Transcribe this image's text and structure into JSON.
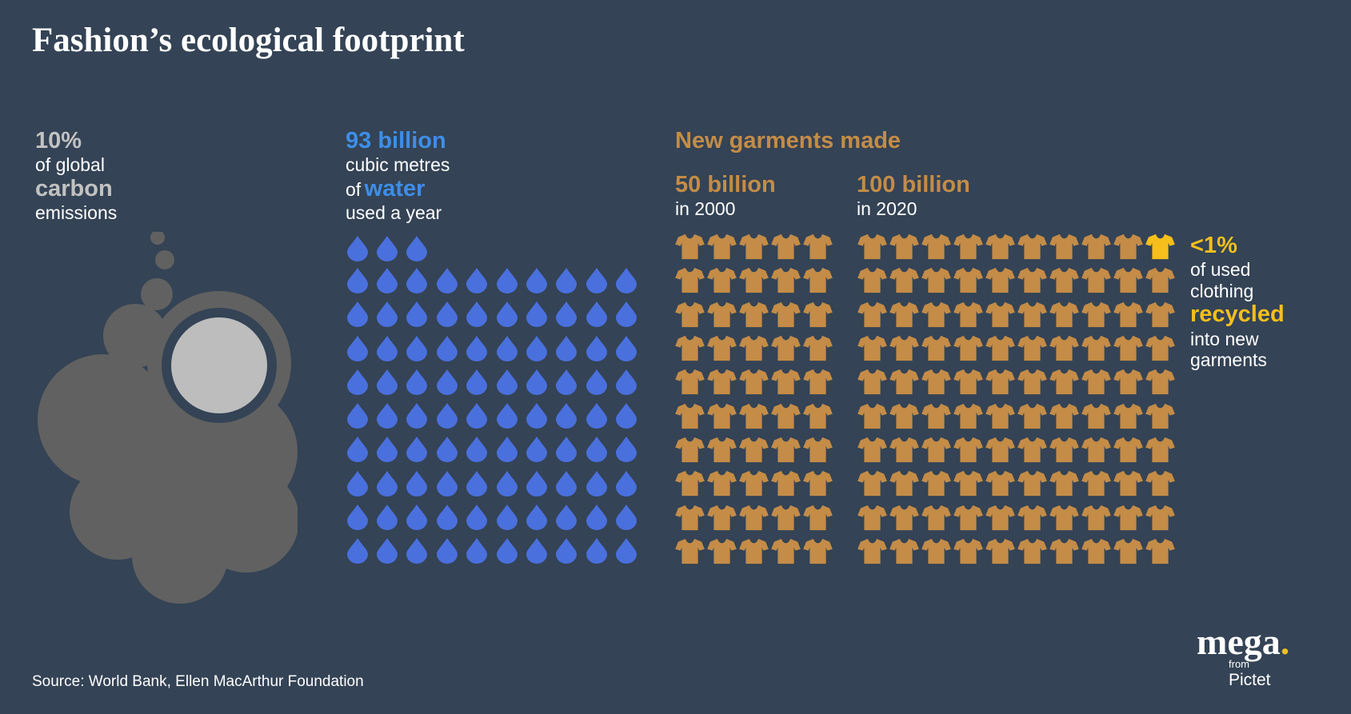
{
  "title": "Fashion’s ecological footprint",
  "carbon": {
    "stat": "10%",
    "line1": "of global",
    "emph": "carbon",
    "line2": "emissions"
  },
  "water": {
    "stat": "93 billion",
    "line1": "cubic metres",
    "line2_prefix": "of",
    "emph": "water",
    "line3": "used a year",
    "drop_count": 93
  },
  "garments": {
    "heading": "New garments made",
    "year2000": {
      "stat": "50 billion",
      "label": "in 2000",
      "shirt_count": 50
    },
    "year2020": {
      "stat": "100 billion",
      "label": "in 2020",
      "shirt_count": 100,
      "highlighted_count": 1
    }
  },
  "recycled": {
    "stat": "<1%",
    "line1": "of used",
    "line2": "clothing",
    "emph": "recycled",
    "line3": "into new",
    "line4": "garments"
  },
  "source": "Source: World Bank, Ellen MacArthur Foundation",
  "logo": {
    "word": "mega",
    "dot": ".",
    "from": "from",
    "brand": "Pictet"
  },
  "colors": {
    "background": "#344355",
    "carbon": "#c2c2c2",
    "cloud": "#616161",
    "cloud_center": "#bdbdbd",
    "water_text": "#3d8ee8",
    "drop": "#4a70dd",
    "garment": "#c48c47",
    "recycled": "#f6bf1c"
  },
  "icons": {
    "drop": "water-drop-icon",
    "shirt": "t-shirt-icon",
    "cloud": "smoke-cloud-icon"
  }
}
